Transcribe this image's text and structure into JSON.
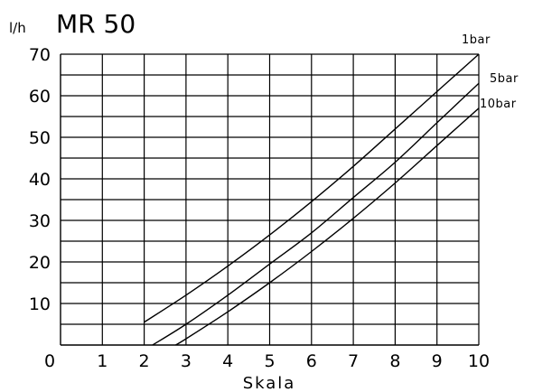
{
  "chart_data": {
    "type": "line",
    "title": "MR 50",
    "unit_label": "l/h",
    "xlabel": "Skala",
    "ylabel": "",
    "xlim": [
      0,
      10
    ],
    "ylim": [
      0,
      70
    ],
    "x_ticks": [
      "0",
      "1",
      "2",
      "3",
      "4",
      "5",
      "6",
      "7",
      "8",
      "9",
      "10"
    ],
    "y_ticks": [
      "10",
      "20",
      "30",
      "40",
      "50",
      "60",
      "70"
    ],
    "grid": true,
    "legend": "none",
    "series": [
      {
        "name": "1bar",
        "x": [
          2,
          3,
          4,
          5,
          6,
          7,
          8,
          9,
          10
        ],
        "values": [
          5.5,
          12,
          19,
          26.5,
          34.5,
          43,
          52,
          61,
          70
        ]
      },
      {
        "name": "5bar",
        "x": [
          2.2,
          3,
          4,
          5,
          6,
          7,
          8,
          9,
          10
        ],
        "values": [
          0,
          5,
          12,
          19.5,
          27,
          35.5,
          44,
          53.5,
          63
        ]
      },
      {
        "name": "10bar",
        "x": [
          2.75,
          3,
          4,
          5,
          6,
          7,
          8,
          9,
          10
        ],
        "values": [
          0,
          1.5,
          8,
          15,
          22.5,
          30.5,
          39,
          48,
          57
        ]
      }
    ]
  }
}
